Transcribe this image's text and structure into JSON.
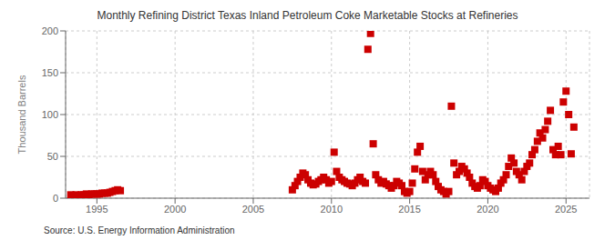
{
  "chart_data": {
    "type": "scatter",
    "title": "Monthly Refining District Texas Inland Petroleum Coke Marketable Stocks at Refineries",
    "ylabel": "Thousand Barrels",
    "annotation": "Source: U.S. Energy Information Administration",
    "color": "#cc0000",
    "marker": "square",
    "grid": true,
    "xlim": [
      1993.0,
      2026.5
    ],
    "ylim": [
      0,
      200
    ],
    "yticks": [
      0,
      50,
      100,
      150,
      200
    ],
    "xticks": [
      1995,
      2000,
      2005,
      2010,
      2015,
      2020,
      2025
    ],
    "x": [
      1993.33,
      1993.5,
      1993.67,
      1993.83,
      1994.0,
      1994.17,
      1994.33,
      1994.5,
      1994.67,
      1994.83,
      1995.0,
      1995.17,
      1995.33,
      1995.5,
      1995.67,
      1995.83,
      1996.0,
      1996.17,
      1996.33,
      1996.5,
      2007.5,
      2007.67,
      2007.83,
      2008.0,
      2008.17,
      2008.33,
      2008.5,
      2008.67,
      2008.83,
      2009.0,
      2009.17,
      2009.33,
      2009.5,
      2009.67,
      2009.83,
      2010.0,
      2010.17,
      2010.33,
      2010.5,
      2010.67,
      2010.83,
      2011.0,
      2011.17,
      2011.33,
      2011.5,
      2011.67,
      2011.83,
      2012.0,
      2012.17,
      2012.33,
      2012.5,
      2012.67,
      2012.83,
      2013.0,
      2013.17,
      2013.33,
      2013.5,
      2013.67,
      2013.83,
      2014.0,
      2014.17,
      2014.33,
      2014.5,
      2014.67,
      2014.83,
      2015.0,
      2015.17,
      2015.33,
      2015.5,
      2015.67,
      2015.83,
      2016.0,
      2016.17,
      2016.33,
      2016.5,
      2016.67,
      2016.83,
      2017.0,
      2017.17,
      2017.33,
      2017.5,
      2017.67,
      2017.83,
      2018.0,
      2018.17,
      2018.33,
      2018.5,
      2018.67,
      2018.83,
      2019.0,
      2019.17,
      2019.33,
      2019.5,
      2019.67,
      2019.83,
      2020.0,
      2020.17,
      2020.33,
      2020.5,
      2020.67,
      2020.83,
      2021.0,
      2021.17,
      2021.33,
      2021.5,
      2021.67,
      2021.83,
      2022.0,
      2022.17,
      2022.33,
      2022.5,
      2022.67,
      2022.83,
      2023.0,
      2023.17,
      2023.33,
      2023.5,
      2023.67,
      2023.83,
      2024.0,
      2024.17,
      2024.33,
      2024.5,
      2024.67,
      2024.83,
      2025.0,
      2025.17,
      2025.33,
      2025.5
    ],
    "values": [
      4,
      3,
      4,
      3,
      4,
      4,
      5,
      4,
      5,
      5,
      5,
      5,
      6,
      6,
      6,
      7,
      8,
      9,
      10,
      9,
      10,
      15,
      20,
      25,
      30,
      28,
      22,
      18,
      16,
      17,
      20,
      22,
      25,
      22,
      18,
      20,
      55,
      32,
      25,
      22,
      20,
      18,
      17,
      15,
      18,
      22,
      25,
      20,
      18,
      178,
      197,
      65,
      28,
      22,
      18,
      20,
      17,
      15,
      12,
      15,
      20,
      18,
      15,
      8,
      6,
      8,
      18,
      35,
      55,
      62,
      32,
      22,
      28,
      32,
      28,
      20,
      14,
      10,
      8,
      5,
      8,
      110,
      42,
      28,
      32,
      38,
      35,
      30,
      25,
      18,
      14,
      12,
      15,
      22,
      20,
      15,
      12,
      10,
      8,
      12,
      18,
      22,
      28,
      38,
      48,
      42,
      32,
      28,
      22,
      32,
      38,
      42,
      52,
      58,
      68,
      78,
      72,
      82,
      92,
      105,
      58,
      52,
      62,
      52,
      115,
      128,
      100,
      53,
      85
    ]
  }
}
